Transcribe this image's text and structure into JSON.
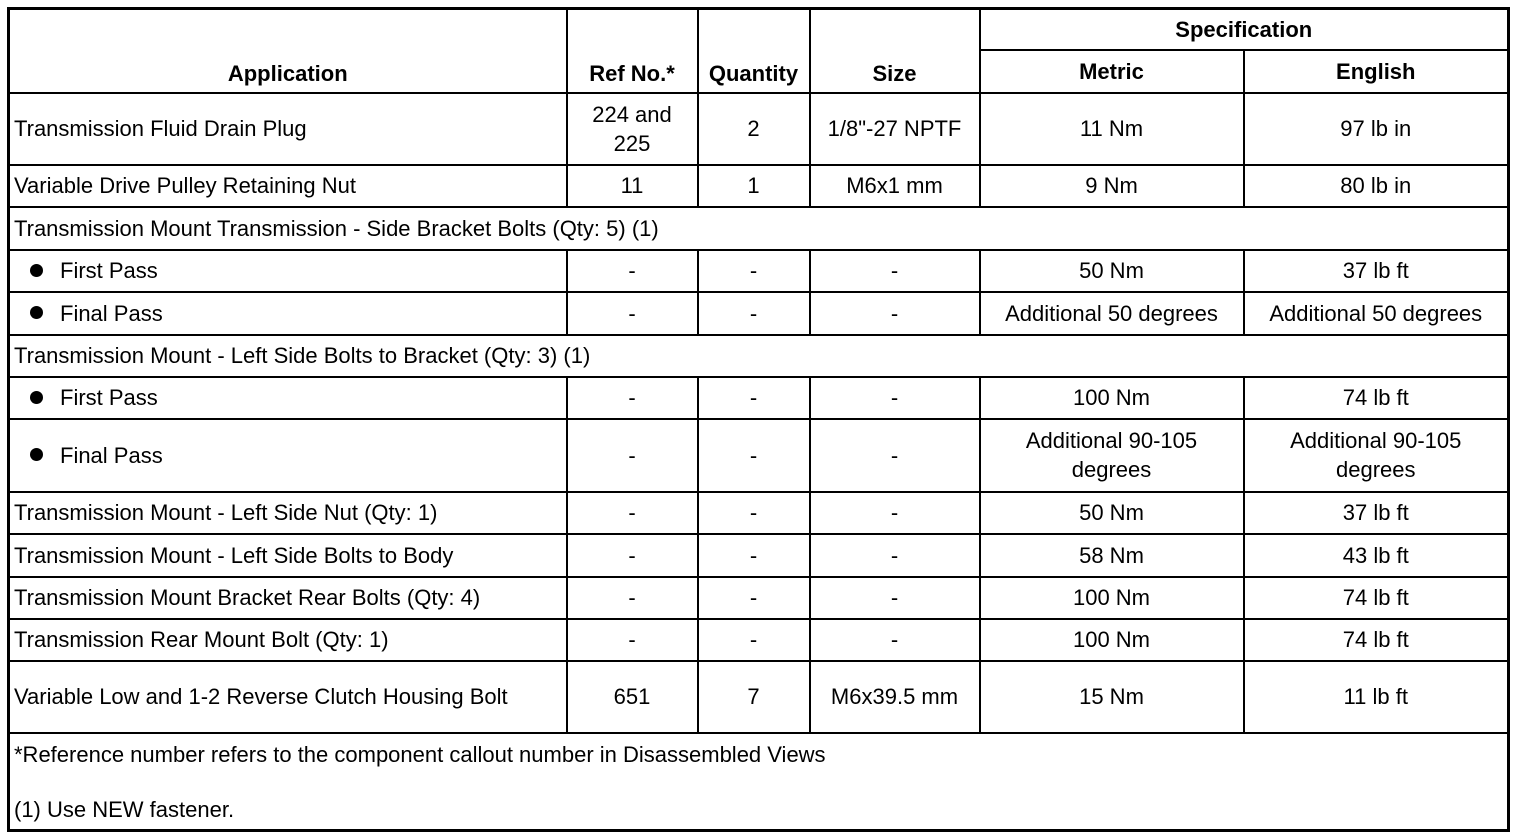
{
  "headers": {
    "application": "Application",
    "ref": "Ref No.*",
    "quantity": "Quantity",
    "size": "Size",
    "specification": "Specification",
    "metric": "Metric",
    "english": "English"
  },
  "rows": [
    {
      "type": "data",
      "application": "Transmission Fluid Drain Plug",
      "ref": "224 and 225",
      "quantity": "2",
      "size": "1/8\"-27 NPTF",
      "metric": "11 Nm",
      "english": "97 lb in"
    },
    {
      "type": "data",
      "application": "Variable Drive Pulley Retaining Nut",
      "ref": "11",
      "quantity": "1",
      "size": "M6x1 mm",
      "metric": "9 Nm",
      "english": "80 lb in"
    },
    {
      "type": "group",
      "application": "Transmission Mount Transmission - Side Bracket Bolts (Qty: 5) (1)"
    },
    {
      "type": "sub",
      "application": "First Pass",
      "ref": "-",
      "quantity": "-",
      "size": "-",
      "metric": "50 Nm",
      "english": "37 lb ft"
    },
    {
      "type": "sub",
      "application": "Final Pass",
      "ref": "-",
      "quantity": "-",
      "size": "-",
      "metric": "Additional 50 degrees",
      "english": "Additional 50 degrees"
    },
    {
      "type": "group",
      "application": "Transmission Mount - Left Side Bolts to Bracket (Qty: 3) (1)"
    },
    {
      "type": "sub",
      "application": "First Pass",
      "ref": "-",
      "quantity": "-",
      "size": "-",
      "metric": "100 Nm",
      "english": "74 lb ft"
    },
    {
      "type": "sub",
      "application": "Final Pass",
      "ref": "-",
      "quantity": "-",
      "size": "-",
      "metric": "Additional 90-105 degrees",
      "english": "Additional 90-105 degrees"
    },
    {
      "type": "data",
      "application": "Transmission Mount - Left Side Nut (Qty: 1)",
      "ref": "-",
      "quantity": "-",
      "size": "-",
      "metric": "50 Nm",
      "english": "37 lb ft"
    },
    {
      "type": "data",
      "application": "Transmission Mount - Left Side Bolts to Body",
      "ref": "-",
      "quantity": "-",
      "size": "-",
      "metric": "58 Nm",
      "english": "43 lb ft"
    },
    {
      "type": "data",
      "application": "Transmission Mount Bracket Rear Bolts (Qty: 4)",
      "ref": "-",
      "quantity": "-",
      "size": "-",
      "metric": "100 Nm",
      "english": "74 lb ft"
    },
    {
      "type": "data",
      "application": "Transmission Rear Mount Bolt (Qty: 1)",
      "ref": "-",
      "quantity": "-",
      "size": "-",
      "metric": "100 Nm",
      "english": "74 lb ft"
    },
    {
      "type": "data",
      "application": "Variable Low and 1-2 Reverse Clutch Housing Bolt",
      "ref": "651",
      "quantity": "7",
      "size": "M6x39.5 mm",
      "metric": "15 Nm",
      "english": "11 lb ft"
    }
  ],
  "footnotes": [
    "*Reference number refers to the component callout number in Disassembled Views",
    "(1) Use NEW fastener."
  ]
}
